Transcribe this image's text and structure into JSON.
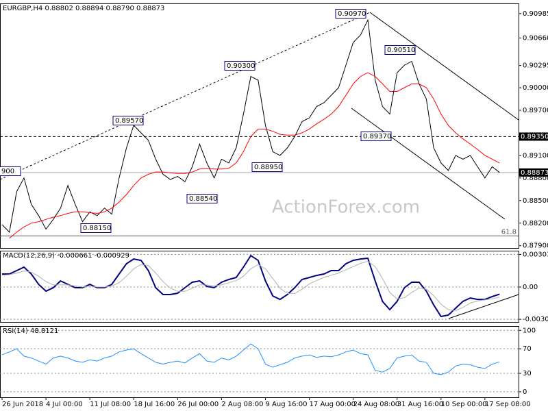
{
  "chart_data": [
    {
      "type": "line",
      "title": "EURGBP,H4  0.88802 0.88894 0.88790 0.88873",
      "watermark": "ActionForex.com",
      "categories": [
        "26 Jun 2018",
        null,
        null,
        null,
        null,
        null,
        "4 Jul 00:00",
        null,
        null,
        null,
        null,
        null,
        "11 Jul 08:00",
        null,
        null,
        null,
        null,
        null,
        "18 Jul 16:00",
        null,
        null,
        null,
        null,
        null,
        "26 Jul 00:00",
        null,
        null,
        null,
        null,
        null,
        "2 Aug 08:00",
        null,
        null,
        null,
        null,
        null,
        "9 Aug 16:00",
        null,
        null,
        null,
        null,
        null,
        "17 Aug 00:00",
        null,
        null,
        null,
        null,
        null,
        "24 Aug 08:00",
        null,
        null,
        null,
        null,
        null,
        "31 Aug 16:00",
        null,
        null,
        null,
        null,
        null,
        "10 Sep 00:00",
        null,
        null,
        null,
        null,
        null,
        "17 Sep 08:00",
        null,
        null
      ],
      "series": [
        {
          "name": "EURGBP",
          "color": "#000000",
          "values": [
            0.8818,
            0.8808,
            0.8862,
            0.888,
            0.8845,
            0.883,
            0.8812,
            0.8825,
            0.884,
            0.887,
            0.8845,
            0.8822,
            0.8835,
            0.883,
            0.884,
            0.8832,
            0.888,
            0.892,
            0.895,
            0.894,
            0.893,
            0.8905,
            0.8885,
            0.8878,
            0.8882,
            0.8875,
            0.8895,
            0.8925,
            0.89,
            0.888,
            0.8905,
            0.89,
            0.892,
            0.8965,
            0.9015,
            0.901,
            0.895,
            0.8915,
            0.891,
            0.892,
            0.8935,
            0.8955,
            0.896,
            0.8975,
            0.898,
            0.899,
            0.9,
            0.903,
            0.906,
            0.907,
            0.909,
            0.901,
            0.8975,
            0.8965,
            0.902,
            0.903,
            0.9035,
            0.9005,
            0.8985,
            0.892,
            0.89,
            0.889,
            0.891,
            0.8905,
            0.891,
            0.8895,
            0.888,
            0.8895,
            0.88873
          ]
        },
        {
          "name": "MA",
          "color": "#ff0000",
          "values": [
            null,
            0.88,
            0.8808,
            0.8815,
            0.882,
            0.8822,
            0.8825,
            0.8828,
            0.883,
            0.8833,
            0.8835,
            0.8835,
            0.8834,
            0.8833,
            0.8835,
            0.884,
            0.8848,
            0.8858,
            0.887,
            0.888,
            0.8885,
            0.8888,
            0.8888,
            0.8887,
            0.8886,
            0.8886,
            0.8888,
            0.8892,
            0.8893,
            0.8892,
            0.8892,
            0.8893,
            0.89,
            0.8915,
            0.8935,
            0.8945,
            0.8945,
            0.8942,
            0.8938,
            0.8937,
            0.8937,
            0.894,
            0.8945,
            0.8952,
            0.8958,
            0.8965,
            0.8975,
            0.899,
            0.9005,
            0.9015,
            0.902,
            0.9015,
            0.9005,
            0.8995,
            0.8995,
            0.9,
            0.9005,
            0.9005,
            0.9,
            0.8985,
            0.8965,
            0.895,
            0.894,
            0.8932,
            0.8925,
            0.8918,
            0.891,
            0.8905,
            0.89
          ]
        }
      ],
      "ylim": [
        0.8787,
        0.9112
      ],
      "yticks": [
        0.90985,
        {
          "value": 0.9066,
          "label": "0.90660"
        },
        0.90295,
        {
          "value": 0.9,
          "label": "0.90000"
        },
        {
          "value": 0.897,
          "label": "0.89700"
        },
        {
          "value": 0.891,
          "label": "0.89100"
        },
        {
          "value": 0.888,
          "label": "0.88800"
        },
        {
          "value": 0.885,
          "label": "0.88500"
        },
        {
          "value": 0.882,
          "label": "0.88200"
        },
        {
          "value": 0.879,
          "label": "0.87900"
        }
      ],
      "levels": [
        {
          "value": 0.8935,
          "label": "0.89350",
          "style": "dashed"
        },
        {
          "value": 0.8803,
          "label": "61.8",
          "style": "fib"
        },
        {
          "value": 0.88873,
          "label": "0.88873",
          "style": "last"
        }
      ],
      "annotations": [
        "0.90970",
        "0.90300",
        "0.89570",
        "0.90510",
        "0.89370",
        "0.88950",
        "0.88540",
        "0.88150",
        "900"
      ]
    },
    {
      "type": "line",
      "title": "MACD(12,26,9) -0.000661 -0.000929",
      "series": [
        {
          "name": "MACD",
          "color": "#000080",
          "values": [
            0.00121,
            0.00121,
            0.00153,
            0.00185,
            0.00121,
            0.00025,
            -0.00038,
            -6e-05,
            0.00057,
            0.00025,
            -6e-05,
            -6e-05,
            0.00025,
            -6e-05,
            -6e-05,
            0.00025,
            0.00121,
            0.00217,
            0.00261,
            0.00248,
            0.00153,
            -6e-05,
            -0.0007,
            -0.0007,
            -0.00057,
            -6e-05,
            0.00045,
            0.00057,
            6e-05,
            -6e-05,
            0.00045,
            0.0007,
            0.00089,
            0.00185,
            0.00293,
            0.00248,
            0.00057,
            -0.00083,
            -0.00115,
            -0.0007,
            -6e-05,
            0.0007,
            0.00089,
            0.00108,
            0.00121,
            0.00153,
            0.00153,
            0.00217,
            0.00248,
            0.00261,
            0.00268,
            0.00057,
            -0.00134,
            -0.0021,
            -0.00134,
            -6e-05,
            0.00045,
            0.00045,
            -0.00038,
            -0.00166,
            -0.00274,
            -0.00261,
            -0.00197,
            -0.00134,
            -0.00102,
            -0.00115,
            -0.00115,
            -0.00089,
            -0.000661
          ]
        },
        {
          "name": "Signal",
          "color": "#b0b0b0",
          "values": [
            0.0011,
            0.00115,
            0.0013,
            0.0015,
            0.0014,
            0.001,
            0.0005,
            0.0002,
            0.0002,
            0.0002,
            0.0001,
            0.0,
            0.0001,
            0.0,
            0.0,
            0.0001,
            0.0004,
            0.001,
            0.0017,
            0.0021,
            0.002,
            0.0013,
            0.0005,
            -0.0001,
            -0.0004,
            -0.0004,
            -0.0001,
            0.0002,
            0.0002,
            0.0001,
            0.0002,
            0.0004,
            0.0006,
            0.001,
            0.0017,
            0.0021,
            0.0017,
            0.0008,
            -0.0001,
            -0.0006,
            -0.0006,
            -0.0002,
            0.0003,
            0.0006,
            0.0009,
            0.0011,
            0.0013,
            0.0016,
            0.0019,
            0.0022,
            0.0024,
            0.0019,
            0.0008,
            -0.0005,
            -0.0011,
            -0.001,
            -0.0005,
            -0.0001,
            -0.0002,
            -0.0008,
            -0.0016,
            -0.0021,
            -0.0022,
            -0.0019,
            -0.0015,
            -0.0013,
            -0.0012,
            -0.0011,
            -0.000929
          ]
        }
      ],
      "ylim": [
        -0.00325,
        0.00338
      ],
      "yticks": [
        0.003034,
        {
          "value": 0,
          "label": "0.00"
        },
        -0.003001
      ],
      "grid": true
    },
    {
      "type": "line",
      "title": "RSI(14) 48.8121",
      "series": [
        {
          "name": "RSI",
          "color": "#1e90ff",
          "values": [
            60,
            65,
            70,
            58,
            55,
            50,
            45,
            55,
            58,
            55,
            50,
            48,
            52,
            50,
            55,
            58,
            65,
            68,
            70,
            62,
            55,
            48,
            45,
            48,
            50,
            47,
            55,
            62,
            50,
            48,
            55,
            52,
            58,
            68,
            78,
            70,
            45,
            40,
            44,
            48,
            55,
            58,
            60,
            56,
            58,
            57,
            60,
            65,
            68,
            62,
            60,
            35,
            32,
            38,
            55,
            58,
            60,
            50,
            48,
            30,
            28,
            32,
            42,
            45,
            44,
            40,
            38,
            45,
            48.8121
          ]
        }
      ],
      "ylim": [
        -9,
        107
      ],
      "yticks": [
        100,
        70,
        30,
        0
      ],
      "grid": true
    }
  ]
}
